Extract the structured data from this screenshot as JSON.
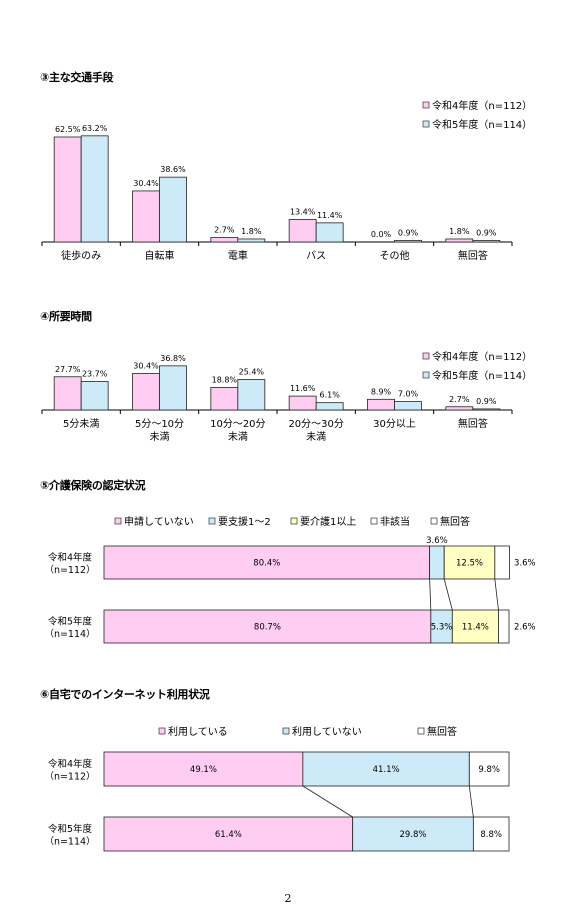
{
  "colors": {
    "pink": "#ffccf2",
    "blue": "#cdeaf8",
    "yellow": "#ffffc4",
    "white": "#ffffff"
  },
  "page_number": "2",
  "chart_data": [
    {
      "id": "transport",
      "type": "bar",
      "title": "③主な交通手段",
      "categories": [
        "徒歩のみ",
        "自転車",
        "電車",
        "バス",
        "その他",
        "無回答"
      ],
      "series": [
        {
          "name": "令和4年度（n=112）",
          "values": [
            62.5,
            30.4,
            2.7,
            13.4,
            0.0,
            1.8
          ],
          "labels": [
            "62.5%",
            "30.4%",
            "2.7%",
            "13.4%",
            "0.0%",
            "1.8%"
          ],
          "color": "#ffccf2"
        },
        {
          "name": "令和5年度（n=114）",
          "values": [
            63.2,
            38.6,
            1.8,
            11.4,
            0.9,
            0.9
          ],
          "labels": [
            "63.2%",
            "38.6%",
            "1.8%",
            "11.4%",
            "0.9%",
            "0.9%"
          ],
          "color": "#cdeaf8"
        }
      ],
      "ylim": [
        0,
        100
      ],
      "legend": "top-right",
      "grid": false
    },
    {
      "id": "time",
      "type": "bar",
      "title": "④所要時間",
      "categories": [
        "5分未満",
        "5分～10分\n未満",
        "10分～20分\n未満",
        "20分～30分\n未満",
        "30分以上",
        "無回答"
      ],
      "series": [
        {
          "name": "令和4年度（n=112）",
          "values": [
            27.7,
            30.4,
            18.8,
            11.6,
            8.9,
            2.7
          ],
          "labels": [
            "27.7%",
            "30.4%",
            "18.8%",
            "11.6%",
            "8.9%",
            "2.7%"
          ],
          "color": "#ffccf2"
        },
        {
          "name": "令和5年度（n=114）",
          "values": [
            23.7,
            36.8,
            25.4,
            6.1,
            7.0,
            0.9
          ],
          "labels": [
            "23.7%",
            "36.8%",
            "25.4%",
            "6.1%",
            "7.0%",
            "0.9%"
          ],
          "color": "#cdeaf8"
        }
      ],
      "ylim": [
        0,
        100
      ],
      "legend": "right",
      "grid": false
    },
    {
      "id": "care",
      "type": "bar",
      "stacked": "100%",
      "title": "⑤介護保険の認定状況",
      "categories": [
        "令和4年度\n（n=112）",
        "令和5年度\n（n=114）"
      ],
      "series": [
        {
          "name": "申請していない",
          "values": [
            80.4,
            80.7
          ],
          "labels": [
            "80.4%",
            "80.7%"
          ],
          "color": "#ffccf2"
        },
        {
          "name": "要支援1～2",
          "values": [
            3.6,
            5.3
          ],
          "labels": [
            "3.6%",
            "5.3%"
          ],
          "color": "#cdeaf8"
        },
        {
          "name": "要介護1以上",
          "values": [
            12.5,
            11.4
          ],
          "labels": [
            "12.5%",
            "11.4%"
          ],
          "color": "#ffffc4"
        },
        {
          "name": "非該当",
          "values": [
            0.0,
            0.0
          ],
          "labels": [
            "",
            ""
          ],
          "color": "#ffffff"
        },
        {
          "name": "無回答",
          "values": [
            3.6,
            2.6
          ],
          "labels": [
            "3.6%",
            "2.6%"
          ],
          "color": "#ffffff"
        }
      ],
      "legend": "top"
    },
    {
      "id": "internet",
      "type": "bar",
      "stacked": "100%",
      "title": "⑥自宅でのインターネット利用状況",
      "categories": [
        "令和4年度\n（n=112）",
        "令和5年度\n（n=114）"
      ],
      "series": [
        {
          "name": "利用している",
          "values": [
            49.1,
            61.4
          ],
          "labels": [
            "49.1%",
            "61.4%"
          ],
          "color": "#ffccf2"
        },
        {
          "name": "利用していない",
          "values": [
            41.1,
            29.8
          ],
          "labels": [
            "41.1%",
            "29.8%"
          ],
          "color": "#cdeaf8"
        },
        {
          "name": "無回答",
          "values": [
            9.8,
            8.8
          ],
          "labels": [
            "9.8%",
            "8.8%"
          ],
          "color": "#ffffff"
        }
      ],
      "legend": "top"
    }
  ]
}
